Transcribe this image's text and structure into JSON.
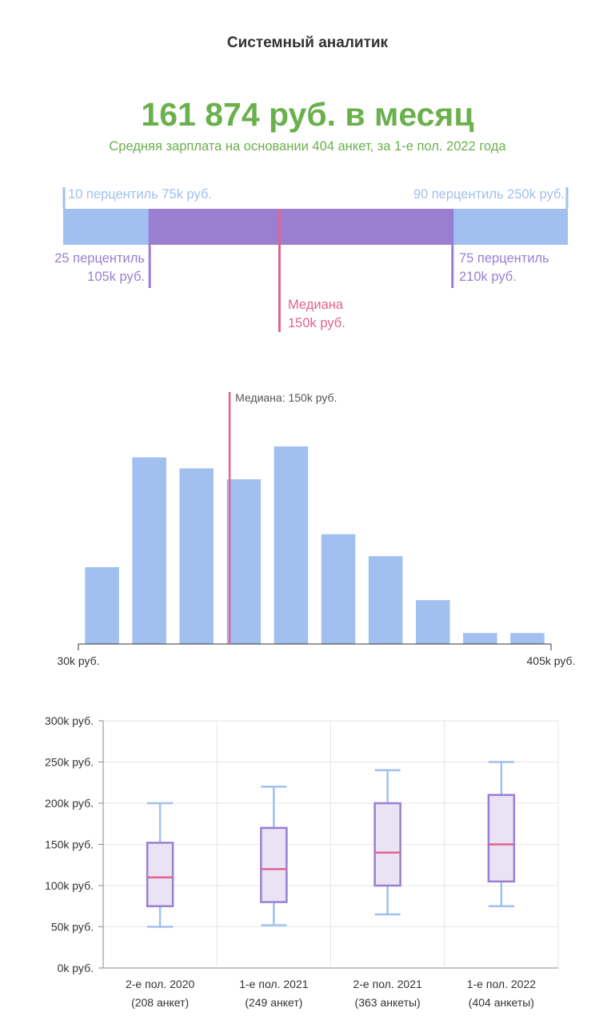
{
  "header": {
    "job_title": "Системный аналитик",
    "salary_headline": "161 874 руб. в месяц",
    "salary_subtitle": "Средняя зарплата на основании 404 анкет, за 1-е пол. 2022 года"
  },
  "percentiles": {
    "scale": [
      30,
      405
    ],
    "p10": {
      "label": "10 перцентиль 75k руб.",
      "value": 75
    },
    "p90": {
      "label": "90 перцентиль 250k руб.",
      "value": 250
    },
    "p25": {
      "line1": "25 перцентиль",
      "line2": "105k руб.",
      "value": 105
    },
    "p75": {
      "line1": "75 перцентиль",
      "line2": "210k руб.",
      "value": 210
    },
    "median": {
      "line1": "Медиана",
      "line2": "150k руб.",
      "value": 150
    }
  },
  "colors": {
    "green": "#6ab04c",
    "blue": "#a1c0ef",
    "purple": "#9a7fd1",
    "pink": "#e2638e",
    "box_fill": "#e9e3f5"
  },
  "chart_data": [
    {
      "type": "bar",
      "title": "",
      "x_range": [
        30,
        405
      ],
      "x_tick_labels": [
        "30k руб.",
        "405k руб."
      ],
      "bins": [
        {
          "from": 30,
          "to": 67.5,
          "value": 35
        },
        {
          "from": 67.5,
          "to": 105,
          "value": 85
        },
        {
          "from": 105,
          "to": 142.5,
          "value": 80
        },
        {
          "from": 142.5,
          "to": 180,
          "value": 75
        },
        {
          "from": 180,
          "to": 217.5,
          "value": 90
        },
        {
          "from": 217.5,
          "to": 255,
          "value": 50
        },
        {
          "from": 255,
          "to": 292.5,
          "value": 40
        },
        {
          "from": 292.5,
          "to": 330,
          "value": 20
        },
        {
          "from": 330,
          "to": 367.5,
          "value": 5
        },
        {
          "from": 367.5,
          "to": 405,
          "value": 5
        }
      ],
      "median": {
        "value": 150,
        "label": "Медиана: 150k руб."
      }
    },
    {
      "type": "box",
      "ylim": [
        0,
        300
      ],
      "y_ticks": [
        {
          "value": 0,
          "label": "0k руб."
        },
        {
          "value": 50,
          "label": "50k руб."
        },
        {
          "value": 100,
          "label": "100k руб."
        },
        {
          "value": 150,
          "label": "150k руб."
        },
        {
          "value": 200,
          "label": "200k руб."
        },
        {
          "value": 250,
          "label": "250k руб."
        },
        {
          "value": 300,
          "label": "300k руб."
        }
      ],
      "grid": true,
      "categories": [
        {
          "line1": "2-е пол. 2020",
          "line2": "(208 анкет)",
          "min": 50,
          "q1": 75,
          "median": 110,
          "q3": 152,
          "max": 200
        },
        {
          "line1": "1-е пол. 2021",
          "line2": "(249 анкет)",
          "min": 52,
          "q1": 80,
          "median": 120,
          "q3": 170,
          "max": 220
        },
        {
          "line1": "2-е пол. 2021",
          "line2": "(363 анкеты)",
          "min": 65,
          "q1": 100,
          "median": 140,
          "q3": 200,
          "max": 240
        },
        {
          "line1": "1-е пол. 2022",
          "line2": "(404 анкеты)",
          "min": 75,
          "q1": 105,
          "median": 150,
          "q3": 210,
          "max": 250
        }
      ]
    }
  ]
}
